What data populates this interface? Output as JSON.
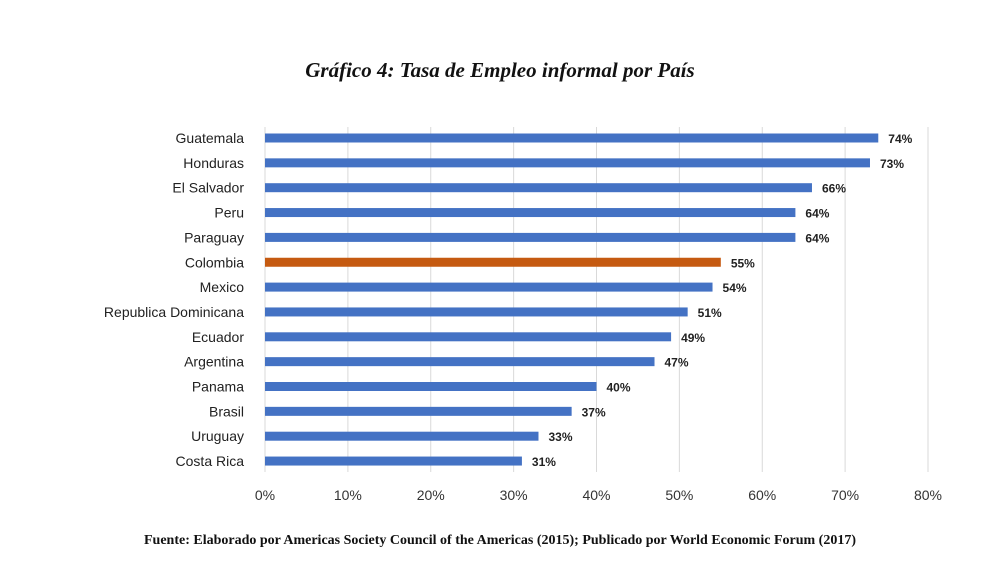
{
  "chart_data": {
    "type": "bar",
    "orientation": "horizontal",
    "title": "Gráfico 4: Tasa de Empleo informal por País",
    "source": "Fuente: Elaborado por Americas Society Council of the Americas (2015); Publicado por World Economic Forum (2017)",
    "categories": [
      "Guatemala",
      "Honduras",
      "El Salvador",
      "Peru",
      "Paraguay",
      "Colombia",
      "Mexico",
      "Republica Dominicana",
      "Ecuador",
      "Argentina",
      "Panama",
      "Brasil",
      "Uruguay",
      "Costa Rica"
    ],
    "values": [
      74,
      73,
      66,
      64,
      64,
      55,
      54,
      51,
      49,
      47,
      40,
      37,
      33,
      31
    ],
    "value_labels": [
      "74%",
      "73%",
      "66%",
      "64%",
      "64%",
      "55%",
      "54%",
      "51%",
      "49%",
      "47%",
      "40%",
      "37%",
      "33%",
      "31%"
    ],
    "xlim": [
      0,
      80
    ],
    "ticks": [
      0,
      10,
      20,
      30,
      40,
      50,
      60,
      70,
      80
    ],
    "tick_labels": [
      "0%",
      "10%",
      "20%",
      "30%",
      "40%",
      "50%",
      "60%",
      "70%",
      "80%"
    ],
    "grid": true,
    "legend": "none",
    "bar_color": "#4472c4",
    "highlight": {
      "category": "Colombia",
      "color": "#c55a11"
    }
  }
}
